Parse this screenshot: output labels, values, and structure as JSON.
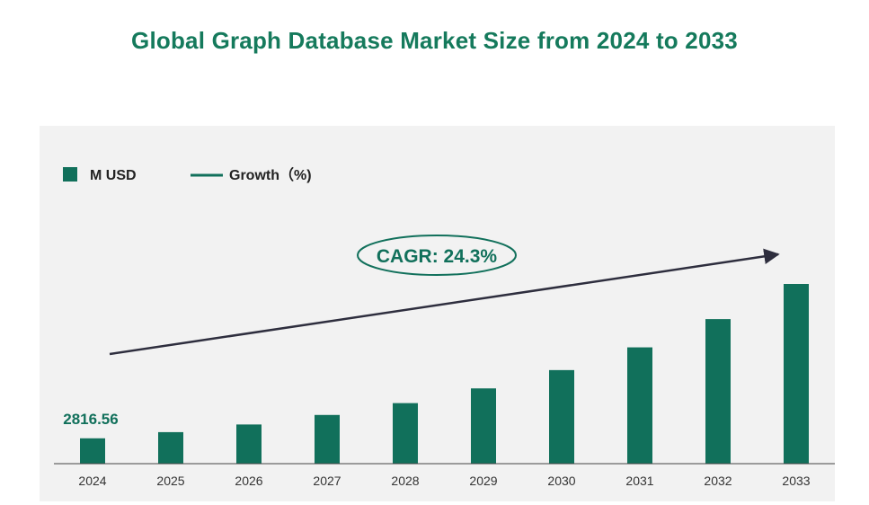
{
  "colors": {
    "title": "#157a5c",
    "bar": "#11705b",
    "panel": "#f2f2f2",
    "arrow": "#2e2e3e",
    "axis_text": "#333333"
  },
  "chart_data": {
    "type": "bar",
    "title": "Global Graph Database Market Size from 2024 to 2033",
    "legend": [
      {
        "label": "M USD",
        "marker": "square"
      },
      {
        "label": "Growth（%)",
        "marker": "line"
      }
    ],
    "legend_placement": "top-left",
    "categories": [
      "2024",
      "2025",
      "2026",
      "2027",
      "2028",
      "2029",
      "2030",
      "2031",
      "2032",
      "2033"
    ],
    "series": [
      {
        "name": "M USD",
        "values": [
          2816.56,
          3501,
          4352,
          5410,
          6725,
          8359,
          10391,
          12916,
          16055,
          19957
        ]
      }
    ],
    "data_labels": [
      {
        "category": "2024",
        "text": "2816.56"
      }
    ],
    "annotation": {
      "text": "CAGR: 24.3%",
      "shape": "ellipse"
    },
    "trend_arrow": true,
    "grid": false
  }
}
